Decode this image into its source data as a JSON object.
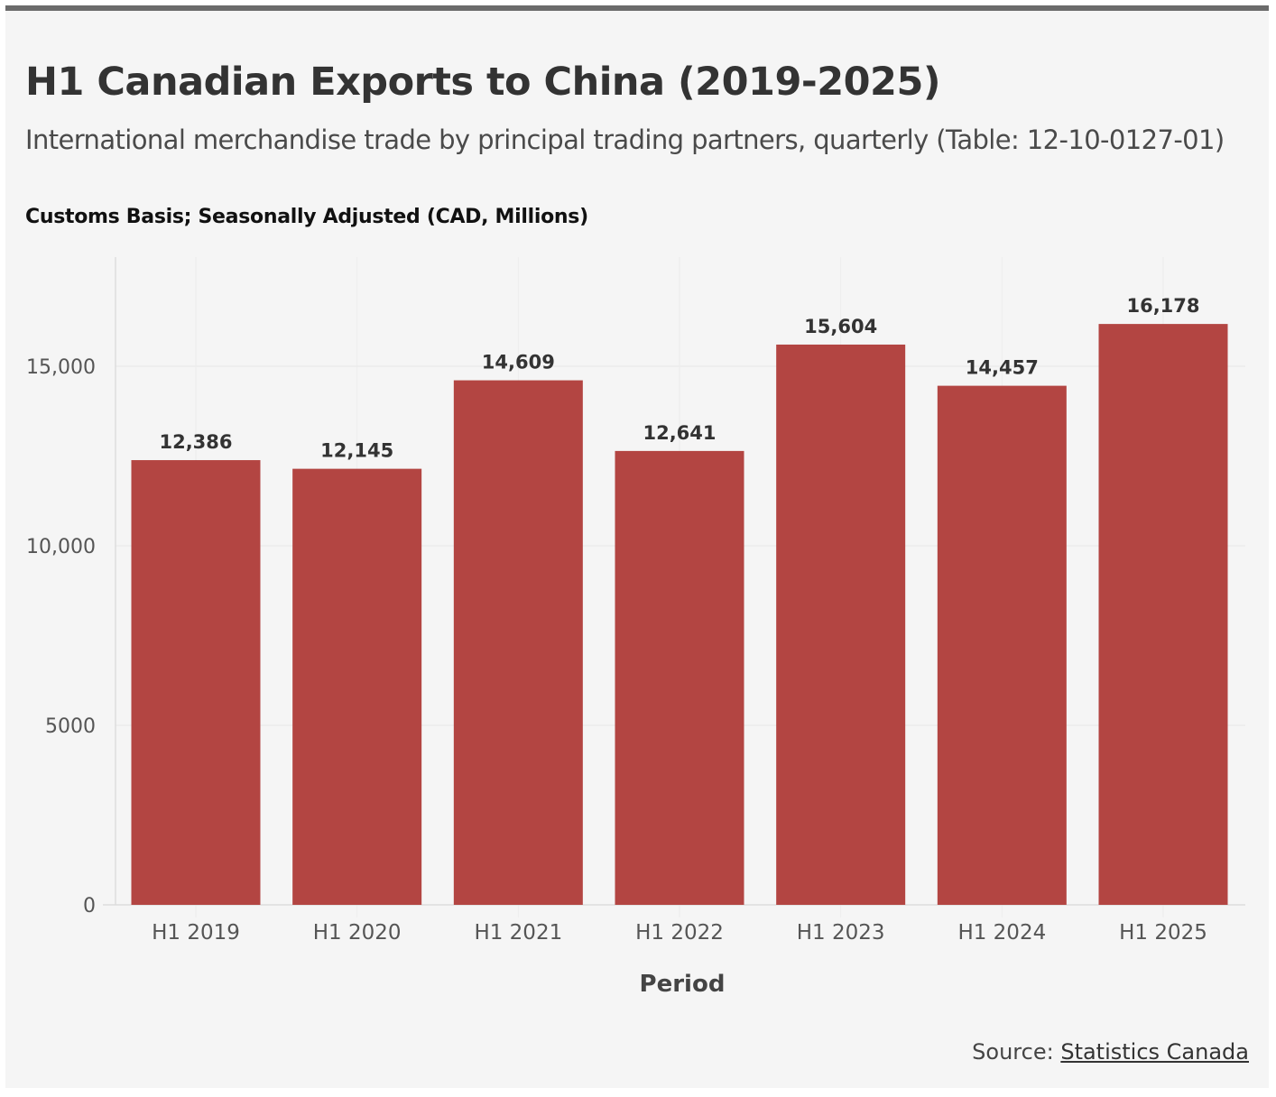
{
  "title": "H1 Canadian Exports to China (2019-2025)",
  "subtitle": "International merchandise trade by principal trading partners, quarterly (Table: 12-10-0127-01)",
  "unit_label": "Customs Basis; Seasonally Adjusted (CAD, Millions)",
  "source": {
    "prefix": "Source: ",
    "link_text": "Statistics Canada"
  },
  "colors": {
    "bar": "#b34542",
    "background": "#f5f5f5",
    "highlight": "#ffff00"
  },
  "chart_data": {
    "type": "bar",
    "title": "H1 Canadian Exports to China (2019-2025)",
    "xlabel": "Period",
    "ylabel": "Customs Basis; Seasonally Adjusted (CAD, Millions)",
    "ylim": [
      0,
      18000
    ],
    "yticks": [
      0,
      5000,
      10000,
      15000
    ],
    "ytick_labels": [
      "0",
      "5000",
      "10,000",
      "15,000"
    ],
    "categories": [
      "H1 2019",
      "H1 2020",
      "H1 2021",
      "H1 2022",
      "H1 2023",
      "H1 2024",
      "H1 2025"
    ],
    "values": [
      12386,
      12145,
      14609,
      12641,
      15604,
      14457,
      16178
    ],
    "data_labels": [
      "12,386",
      "12,145",
      "14,609",
      "12,641",
      "15,604",
      "14,457",
      "16,178"
    ],
    "grid": true
  }
}
